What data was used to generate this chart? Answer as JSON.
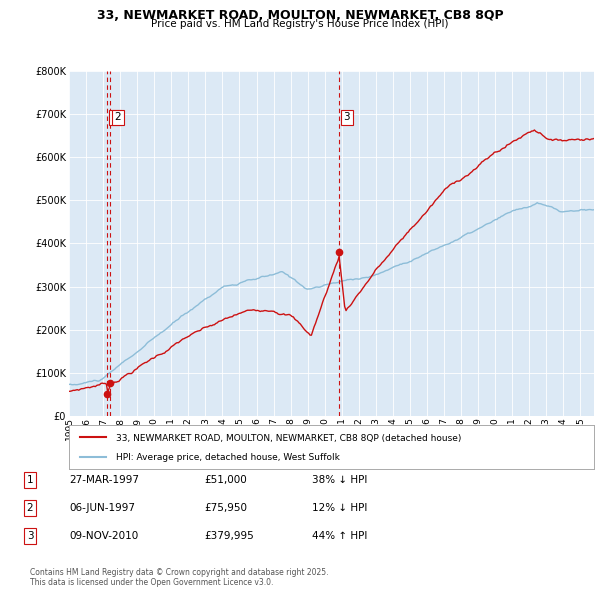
{
  "title": "33, NEWMARKET ROAD, MOULTON, NEWMARKET, CB8 8QP",
  "subtitle": "Price paid vs. HM Land Registry's House Price Index (HPI)",
  "plot_bg_color": "#dce9f5",
  "hpi_color": "#8dbdd8",
  "price_color": "#cc1111",
  "dashed_line_color": "#cc1111",
  "transactions": [
    {
      "date_x": 1997.23,
      "price": 51000,
      "label": "1"
    },
    {
      "date_x": 1997.43,
      "price": 75950,
      "label": "2"
    },
    {
      "date_x": 2010.85,
      "price": 379995,
      "label": "3"
    }
  ],
  "legend_entries": [
    "33, NEWMARKET ROAD, MOULTON, NEWMARKET, CB8 8QP (detached house)",
    "HPI: Average price, detached house, West Suffolk"
  ],
  "table_rows": [
    {
      "num": "1",
      "date": "27-MAR-1997",
      "price": "£51,000",
      "hpi": "38% ↓ HPI"
    },
    {
      "num": "2",
      "date": "06-JUN-1997",
      "price": "£75,950",
      "hpi": "12% ↓ HPI"
    },
    {
      "num": "3",
      "date": "09-NOV-2010",
      "price": "£379,995",
      "hpi": "44% ↑ HPI"
    }
  ],
  "footer": "Contains HM Land Registry data © Crown copyright and database right 2025.\nThis data is licensed under the Open Government Licence v3.0.",
  "ylim": [
    0,
    800000
  ],
  "yticks": [
    0,
    100000,
    200000,
    300000,
    400000,
    500000,
    600000,
    700000,
    800000
  ],
  "xmin": 1995.0,
  "xmax": 2025.8
}
